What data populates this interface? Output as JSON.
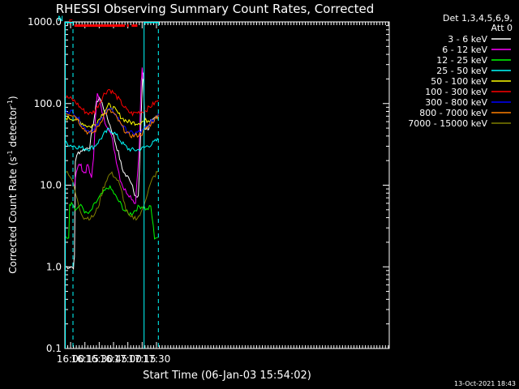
{
  "chart_data": {
    "type": "line",
    "title": "RHESSI Observing Summary Count Rates, Corrected",
    "xlabel": "Start Time (06-Jan-03 15:54:02)",
    "ylabel_main": "Corrected Count Rate (s",
    "ylabel_sup1": "-1",
    "ylabel_mid": " detector",
    "ylabel_sup2": "-1",
    "ylabel_end": ")",
    "yscale": "log",
    "ylim": [
      0.1,
      1000
    ],
    "xlim_minutes": [
      954,
      1294
    ],
    "x_ticks": [
      {
        "m": 960,
        "label": "16:00"
      },
      {
        "m": 975,
        "label": "16:15"
      },
      {
        "m": 990,
        "label": "16:30"
      },
      {
        "m": 1005,
        "label": "16:45"
      },
      {
        "m": 1020,
        "label": "17:00"
      },
      {
        "m": 1035,
        "label": "17:15"
      },
      {
        "m": 1050,
        "label": "17:30"
      }
    ],
    "y_ticks": [
      {
        "v": 0.1,
        "label": "0.1"
      },
      {
        "v": 1,
        "label": "1.0"
      },
      {
        "v": 10,
        "label": "10.0"
      },
      {
        "v": 100,
        "label": "100.0"
      },
      {
        "v": 1000,
        "label": "1000.0"
      }
    ],
    "legend_header": [
      "Det 1,3,4,5,6,9,",
      "Att 0"
    ],
    "series": [
      {
        "name": "3 - 6 keV",
        "color": "#ffffff",
        "x": [
          955,
          957,
          960,
          963,
          964,
          965,
          968,
          972,
          976,
          980,
          984,
          987,
          990,
          993,
          996,
          1000,
          1005,
          1010,
          1014,
          1018,
          1022,
          1025,
          1027,
          1029,
          1031,
          1033,
          1035,
          1036,
          1038,
          1040,
          1042,
          1044,
          1046,
          1048,
          1050,
          1052
        ],
        "y": [
          1.0,
          1.0,
          1.0,
          1.0,
          1.3,
          20,
          25,
          27,
          28,
          30,
          60,
          100,
          120,
          100,
          80,
          60,
          40,
          25,
          16,
          13,
          12,
          10,
          8,
          7,
          7,
          30,
          160,
          240,
          50,
          50,
          50,
          60,
          60,
          65,
          70,
          75
        ]
      },
      {
        "name": "6 - 12 keV",
        "color": "#ff00ff",
        "x": [
          964,
          966,
          968,
          970,
          972,
          974,
          976,
          978,
          980,
          982,
          984,
          986,
          988,
          990,
          993,
          996,
          1000,
          1004,
          1008,
          1012,
          1016,
          1020,
          1024,
          1028,
          1032,
          1034,
          1035,
          1036
        ],
        "y": [
          10,
          15,
          17,
          18,
          16,
          14,
          15,
          18,
          14,
          13,
          20,
          70,
          130,
          110,
          80,
          60,
          50,
          35,
          20,
          12,
          9,
          8,
          7,
          6,
          30,
          180,
          260,
          200
        ]
      },
      {
        "name": "12 - 25 keV",
        "color": "#00ff00",
        "x": [
          955,
          958,
          959,
          961,
          964,
          966,
          968,
          972,
          976,
          980,
          984,
          988,
          992,
          996,
          1000,
          1004,
          1008,
          1012,
          1016,
          1020,
          1024,
          1028,
          1032,
          1036,
          1040,
          1044,
          1048,
          1052
        ],
        "y": [
          2.3,
          2.3,
          5.5,
          6.5,
          5.5,
          5.0,
          5.5,
          5.5,
          4.5,
          4.5,
          5.5,
          6.5,
          7.5,
          8.5,
          9.5,
          8.5,
          7.0,
          6.0,
          5.0,
          4.5,
          4.5,
          5.0,
          5.5,
          5.5,
          5.0,
          5.5,
          2.3,
          2.3
        ]
      },
      {
        "name": "25 - 50 keV",
        "color": "#00ffff",
        "x": [
          955,
          960,
          965,
          970,
          975,
          980,
          985,
          990,
          995,
          1000,
          1005,
          1010,
          1015,
          1020,
          1025,
          1030,
          1035,
          1040,
          1045,
          1050,
          1052
        ],
        "y": [
          33,
          31,
          30,
          29,
          28,
          28,
          30,
          35,
          42,
          48,
          45,
          38,
          32,
          28,
          27,
          27,
          28,
          30,
          32,
          35,
          36
        ]
      },
      {
        "name": "50 - 100 keV",
        "color": "#ffff00",
        "x": [
          955,
          960,
          965,
          970,
          975,
          980,
          985,
          990,
          995,
          1000,
          1005,
          1010,
          1015,
          1020,
          1025,
          1030,
          1035,
          1040,
          1045,
          1050,
          1052
        ],
        "y": [
          67,
          66,
          64,
          60,
          55,
          52,
          55,
          65,
          80,
          95,
          88,
          75,
          65,
          60,
          58,
          58,
          60,
          62,
          65,
          70,
          72
        ]
      },
      {
        "name": "100 - 300 keV",
        "color": "#ff0000",
        "x": [
          955,
          960,
          965,
          970,
          975,
          980,
          985,
          990,
          995,
          1000,
          1005,
          1010,
          1015,
          1020,
          1025,
          1030,
          1035,
          1040,
          1045,
          1050,
          1052
        ],
        "y": [
          120,
          115,
          105,
          90,
          80,
          75,
          80,
          100,
          130,
          150,
          135,
          115,
          95,
          80,
          75,
          78,
          80,
          85,
          95,
          105,
          110
        ]
      },
      {
        "name": "300 - 800 keV",
        "color": "#0000ff",
        "x": [
          955,
          960,
          965,
          970,
          975,
          980,
          985,
          990,
          995,
          1000,
          1005,
          1010,
          1015,
          1020,
          1025,
          1030,
          1035,
          1040,
          1045,
          1050,
          1052
        ],
        "y": [
          82,
          80,
          75,
          60,
          50,
          46,
          48,
          58,
          75,
          85,
          80,
          65,
          52,
          45,
          43,
          44,
          46,
          52,
          60,
          70,
          75
        ]
      },
      {
        "name": "800 - 7000 keV",
        "color": "#ff8000",
        "x": [
          955,
          960,
          965,
          970,
          975,
          980,
          985,
          990,
          995,
          1000,
          1005,
          1010,
          1015,
          1020,
          1025,
          1030,
          1035,
          1040,
          1045,
          1050,
          1052
        ],
        "y": [
          77,
          75,
          70,
          57,
          47,
          43,
          45,
          55,
          72,
          82,
          76,
          62,
          50,
          42,
          40,
          41,
          43,
          50,
          58,
          68,
          72
        ]
      },
      {
        "name": "7000 - 15000 keV",
        "color": "#808000",
        "x": [
          955,
          958,
          961,
          964,
          967,
          970,
          974,
          978,
          982,
          986,
          990,
          994,
          998,
          1002,
          1006,
          1010,
          1014,
          1018,
          1022,
          1026,
          1030,
          1034,
          1038,
          1042,
          1046,
          1050,
          1052
        ],
        "y": [
          15,
          14,
          12,
          9,
          6.5,
          5.0,
          4.0,
          4.0,
          4.0,
          4.5,
          6.0,
          9.0,
          12,
          14,
          13,
          11,
          8,
          5,
          4.0,
          4.0,
          4.0,
          4.5,
          6.5,
          9.0,
          12,
          14,
          15
        ]
      }
    ],
    "flag_segments": [
      {
        "label": "F",
        "color": "#ff0000",
        "y": 900,
        "from": 964,
        "to": 1017
      },
      {
        "label": "",
        "color": "#ff0000",
        "y": 900,
        "from": 1019,
        "to": 1021
      },
      {
        "label": "",
        "color": "#ff0000",
        "y": 900,
        "from": 1024,
        "to": 1030
      },
      {
        "label": "N",
        "color": "#00ffff",
        "y": 1000,
        "from": 954,
        "to": 962
      },
      {
        "label": "",
        "color": "#00ffff",
        "y": 1000,
        "from": 1037,
        "to": 1052
      }
    ],
    "cyan_vlines": [
      {
        "m": 954.5,
        "style": "solid"
      },
      {
        "m": 962.5,
        "style": "dashed"
      },
      {
        "m": 1037,
        "style": "solid"
      },
      {
        "m": 1052,
        "style": "dashed"
      }
    ],
    "footer_date": "13-Oct-2021 18:43"
  }
}
